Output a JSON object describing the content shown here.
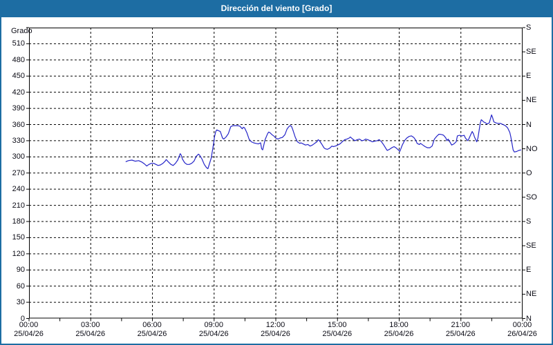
{
  "title": "Dirección del viento [Grado]",
  "colors": {
    "titlebar": "#1d6da3",
    "window_border": "#1d6da3",
    "series_line": "#2323c8",
    "grid": "#000000",
    "axis": "#000000",
    "label_text": "#0a0a14",
    "plot_background": "#ffffff"
  },
  "chart_data": {
    "type": "line",
    "title": "Dirección del viento [Grado]",
    "legend_position": "none",
    "grid": {
      "horizontal_step_deg": 30,
      "vertical_step_hours": 3,
      "style": "dashed"
    },
    "y_axis": {
      "unit_label": "Grado",
      "min": 0,
      "max": 540,
      "tick_step": 30,
      "tick_labels": [
        "0",
        "30",
        "60",
        "90",
        "120",
        "150",
        "180",
        "210",
        "240",
        "270",
        "300",
        "330",
        "360",
        "390",
        "420",
        "450",
        "480",
        "510"
      ]
    },
    "right_axis": {
      "description": "compass direction equivalents",
      "ticks": [
        {
          "deg": 0,
          "label": "N"
        },
        {
          "deg": 45,
          "label": "NE"
        },
        {
          "deg": 90,
          "label": "E"
        },
        {
          "deg": 135,
          "label": "SE"
        },
        {
          "deg": 180,
          "label": "S"
        },
        {
          "deg": 225,
          "label": "SO"
        },
        {
          "deg": 270,
          "label": "O"
        },
        {
          "deg": 315,
          "label": "NO"
        },
        {
          "deg": 360,
          "label": "N"
        },
        {
          "deg": 405,
          "label": "NE"
        },
        {
          "deg": 450,
          "label": "E"
        },
        {
          "deg": 495,
          "label": "SE"
        },
        {
          "deg": 540,
          "label": "S"
        }
      ]
    },
    "x_axis": {
      "hours_min": 0,
      "hours_max": 24,
      "major_tick_step_hours": 3,
      "minor_tick_step_hours": 1.5,
      "tick_labels": [
        {
          "time": "00:00",
          "date": "25/04/26"
        },
        {
          "time": "03:00",
          "date": "25/04/26"
        },
        {
          "time": "06:00",
          "date": "25/04/26"
        },
        {
          "time": "09:00",
          "date": "25/04/26"
        },
        {
          "time": "12:00",
          "date": "25/04/26"
        },
        {
          "time": "15:00",
          "date": "25/04/26"
        },
        {
          "time": "18:00",
          "date": "25/04/26"
        },
        {
          "time": "21:00",
          "date": "25/04/26"
        },
        {
          "time": "00:00",
          "date": "26/04/26"
        }
      ]
    },
    "series": [
      {
        "name": "Dirección del viento",
        "unit": "Grado",
        "color": "#2323c8",
        "points": [
          [
            4.7,
            291
          ],
          [
            4.83,
            293
          ],
          [
            5.0,
            294
          ],
          [
            5.16,
            292
          ],
          [
            5.33,
            293
          ],
          [
            5.5,
            290
          ],
          [
            5.61,
            287
          ],
          [
            5.72,
            283
          ],
          [
            5.83,
            286
          ],
          [
            5.95,
            288
          ],
          [
            6.06,
            288
          ],
          [
            6.17,
            286
          ],
          [
            6.28,
            284
          ],
          [
            6.39,
            285
          ],
          [
            6.51,
            288
          ],
          [
            6.62,
            292
          ],
          [
            6.67,
            295
          ],
          [
            6.79,
            290
          ],
          [
            6.9,
            286
          ],
          [
            7.01,
            284
          ],
          [
            7.12,
            288
          ],
          [
            7.23,
            294
          ],
          [
            7.35,
            306
          ],
          [
            7.4,
            303
          ],
          [
            7.46,
            296
          ],
          [
            7.57,
            289
          ],
          [
            7.68,
            286
          ],
          [
            7.79,
            286
          ],
          [
            7.91,
            288
          ],
          [
            8.02,
            292
          ],
          [
            8.13,
            301
          ],
          [
            8.24,
            305
          ],
          [
            8.3,
            303
          ],
          [
            8.41,
            296
          ],
          [
            8.52,
            286
          ],
          [
            8.63,
            280
          ],
          [
            8.7,
            278
          ],
          [
            8.74,
            283
          ],
          [
            8.86,
            298
          ],
          [
            8.97,
            324
          ],
          [
            9.02,
            337
          ],
          [
            9.08,
            347
          ],
          [
            9.13,
            350
          ],
          [
            9.19,
            349
          ],
          [
            9.3,
            347
          ],
          [
            9.41,
            335
          ],
          [
            9.47,
            333
          ],
          [
            9.58,
            337
          ],
          [
            9.69,
            343
          ],
          [
            9.81,
            356
          ],
          [
            9.92,
            358
          ],
          [
            10.03,
            358
          ],
          [
            10.14,
            358
          ],
          [
            10.25,
            357
          ],
          [
            10.37,
            352
          ],
          [
            10.42,
            355
          ],
          [
            10.48,
            354
          ],
          [
            10.59,
            345
          ],
          [
            10.7,
            333
          ],
          [
            10.81,
            328
          ],
          [
            10.92,
            326
          ],
          [
            11.03,
            325
          ],
          [
            11.15,
            324
          ],
          [
            11.26,
            326
          ],
          [
            11.31,
            315
          ],
          [
            11.36,
            313
          ],
          [
            11.48,
            332
          ],
          [
            11.6,
            343
          ],
          [
            11.65,
            346
          ],
          [
            11.71,
            345
          ],
          [
            11.82,
            341
          ],
          [
            11.93,
            338
          ],
          [
            11.99,
            335
          ],
          [
            12.1,
            333
          ],
          [
            12.21,
            335
          ],
          [
            12.32,
            336
          ],
          [
            12.44,
            341
          ],
          [
            12.55,
            352
          ],
          [
            12.66,
            357
          ],
          [
            12.72,
            358
          ],
          [
            12.77,
            356
          ],
          [
            12.83,
            350
          ],
          [
            12.94,
            337
          ],
          [
            13.05,
            328
          ],
          [
            13.17,
            325
          ],
          [
            13.22,
            326
          ],
          [
            13.33,
            324
          ],
          [
            13.44,
            322
          ],
          [
            13.56,
            323
          ],
          [
            13.67,
            320
          ],
          [
            13.78,
            322
          ],
          [
            13.89,
            325
          ],
          [
            14.0,
            328
          ],
          [
            14.06,
            332
          ],
          [
            14.12,
            330
          ],
          [
            14.23,
            324
          ],
          [
            14.34,
            317
          ],
          [
            14.4,
            315
          ],
          [
            14.51,
            314
          ],
          [
            14.62,
            316
          ],
          [
            14.73,
            320
          ],
          [
            14.79,
            319
          ],
          [
            14.9,
            320
          ],
          [
            15.01,
            322
          ],
          [
            15.12,
            324
          ],
          [
            15.18,
            326
          ],
          [
            15.23,
            328
          ],
          [
            15.35,
            332
          ],
          [
            15.46,
            333
          ],
          [
            15.57,
            335
          ],
          [
            15.62,
            337
          ],
          [
            15.74,
            333
          ],
          [
            15.85,
            330
          ],
          [
            15.96,
            332
          ],
          [
            16.07,
            333
          ],
          [
            16.18,
            330
          ],
          [
            16.3,
            331
          ],
          [
            16.36,
            333
          ],
          [
            16.47,
            332
          ],
          [
            16.58,
            330
          ],
          [
            16.69,
            328
          ],
          [
            16.8,
            329
          ],
          [
            16.92,
            330
          ],
          [
            17.03,
            332
          ],
          [
            17.14,
            328
          ],
          [
            17.25,
            322
          ],
          [
            17.36,
            315
          ],
          [
            17.42,
            312
          ],
          [
            17.53,
            314
          ],
          [
            17.64,
            317
          ],
          [
            17.75,
            319
          ],
          [
            17.87,
            316
          ],
          [
            17.98,
            312
          ],
          [
            18.03,
            310
          ],
          [
            18.15,
            322
          ],
          [
            18.26,
            330
          ],
          [
            18.37,
            335
          ],
          [
            18.48,
            338
          ],
          [
            18.59,
            339
          ],
          [
            18.71,
            336
          ],
          [
            18.82,
            330
          ],
          [
            18.87,
            325
          ],
          [
            18.98,
            323
          ],
          [
            19.04,
            325
          ],
          [
            19.15,
            322
          ],
          [
            19.26,
            319
          ],
          [
            19.37,
            317
          ],
          [
            19.49,
            317
          ],
          [
            19.6,
            320
          ],
          [
            19.71,
            333
          ],
          [
            19.82,
            338
          ],
          [
            19.93,
            342
          ],
          [
            19.99,
            342
          ],
          [
            20.1,
            341
          ],
          [
            20.16,
            340
          ],
          [
            20.27,
            335
          ],
          [
            20.32,
            330
          ],
          [
            20.38,
            333
          ],
          [
            20.49,
            326
          ],
          [
            20.55,
            322
          ],
          [
            20.66,
            324
          ],
          [
            20.77,
            328
          ],
          [
            20.83,
            339
          ],
          [
            20.94,
            340
          ],
          [
            21.05,
            339
          ],
          [
            21.16,
            340
          ],
          [
            21.22,
            335
          ],
          [
            21.33,
            330
          ],
          [
            21.38,
            333
          ],
          [
            21.5,
            343
          ],
          [
            21.55,
            347
          ],
          [
            21.61,
            343
          ],
          [
            21.66,
            337
          ],
          [
            21.72,
            332
          ],
          [
            21.77,
            328
          ],
          [
            21.83,
            335
          ],
          [
            21.94,
            362
          ],
          [
            21.99,
            369
          ],
          [
            22.05,
            367
          ],
          [
            22.1,
            365
          ],
          [
            22.21,
            363
          ],
          [
            22.27,
            361
          ],
          [
            22.38,
            363
          ],
          [
            22.49,
            378
          ],
          [
            22.54,
            373
          ],
          [
            22.6,
            365
          ],
          [
            22.71,
            363
          ],
          [
            22.82,
            362
          ],
          [
            22.93,
            362
          ],
          [
            23.05,
            360
          ],
          [
            23.16,
            358
          ],
          [
            23.27,
            354
          ],
          [
            23.32,
            350
          ],
          [
            23.38,
            345
          ],
          [
            23.43,
            337
          ],
          [
            23.49,
            324
          ],
          [
            23.54,
            313
          ],
          [
            23.6,
            309
          ],
          [
            23.71,
            310
          ],
          [
            23.82,
            312
          ],
          [
            23.93,
            313
          ]
        ]
      }
    ]
  }
}
